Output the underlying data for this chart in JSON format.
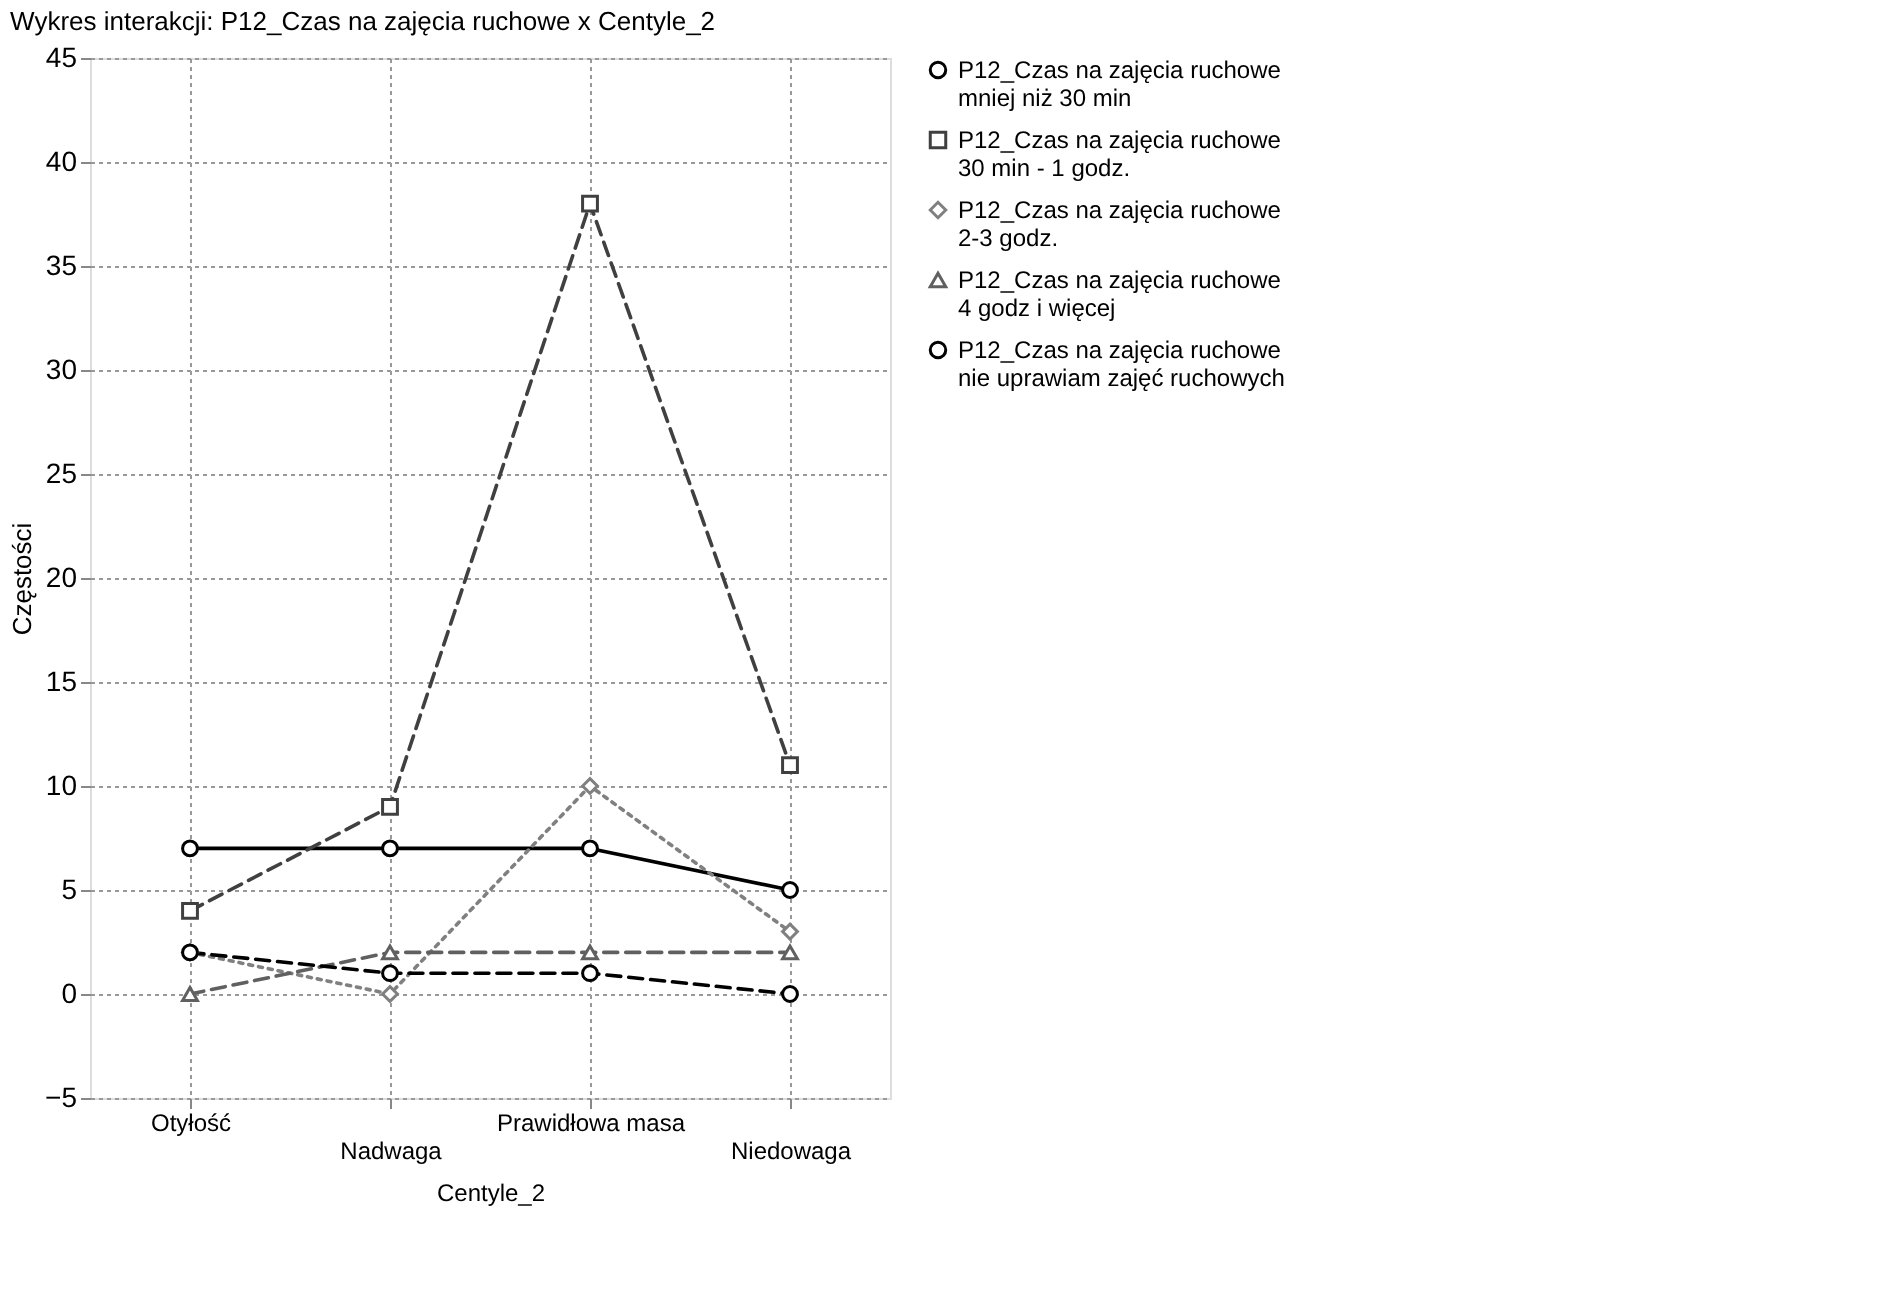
{
  "chart_data": {
    "type": "line",
    "title": "Wykres interakcji: P12_Czas na zajęcia ruchowe x Centyle_2",
    "xlabel": "Centyle_2",
    "ylabel": "Częstości",
    "categories": [
      "Otyłość",
      "Nadwaga",
      "Prawidłowa masa",
      "Niedowaga"
    ],
    "series": [
      {
        "name": "P12_Czas na zajęcia ruchowe\nmniej niż 30 min",
        "color": "#000000",
        "marker": "circle",
        "line_style": "solid",
        "values": [
          7,
          7,
          7,
          5
        ]
      },
      {
        "name": "P12_Czas na zajęcia ruchowe\n30 min - 1 godz.",
        "color": "#404040",
        "marker": "square",
        "line_style": "dashed",
        "values": [
          4,
          9,
          38,
          11
        ]
      },
      {
        "name": "P12_Czas na zajęcia ruchowe\n2-3 godz.",
        "color": "#808080",
        "marker": "diamond",
        "line_style": "dotted",
        "values": [
          2,
          0,
          10,
          3
        ]
      },
      {
        "name": "P12_Czas na zajęcia ruchowe\n4 godz i więcej",
        "color": "#606060",
        "marker": "triangle",
        "line_style": "dashed",
        "values": [
          0,
          2,
          2,
          2
        ]
      },
      {
        "name": "P12_Czas na zajęcia ruchowe\nnie uprawiam zajęć ruchowych",
        "color": "#000000",
        "marker": "circle",
        "line_style": "dashed",
        "values": [
          2,
          1,
          1,
          0
        ]
      }
    ],
    "ylim": [
      -5,
      45
    ],
    "yticks": [
      -5,
      0,
      5,
      10,
      15,
      20,
      25,
      30,
      35,
      40,
      45
    ],
    "grid": true,
    "legend": "right"
  }
}
